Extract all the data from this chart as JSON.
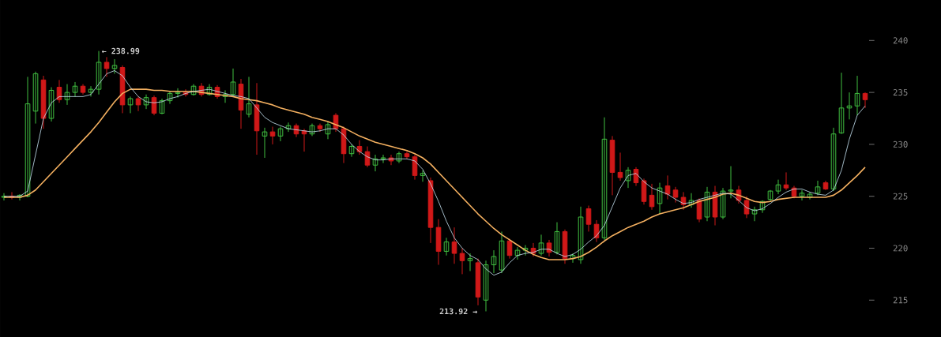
{
  "chart_data": {
    "type": "candlestick",
    "categories": [
      null,
      null,
      null,
      null,
      null,
      null,
      null,
      null,
      null,
      null,
      null,
      null,
      null,
      null,
      null,
      null,
      null,
      null,
      null,
      null,
      null,
      null,
      null,
      null,
      null,
      null,
      null,
      null,
      null,
      null,
      null,
      null,
      null,
      null,
      null,
      null,
      null,
      null,
      null,
      null,
      null,
      null,
      null,
      null,
      null,
      null,
      null,
      null,
      null,
      null,
      null,
      null,
      null,
      null,
      null,
      null,
      null,
      null,
      null,
      null,
      null,
      null,
      null,
      null,
      null,
      null,
      null,
      null,
      null,
      null,
      null,
      null,
      null,
      null,
      null,
      null,
      null,
      null,
      null,
      null,
      null,
      null,
      null,
      null,
      null,
      null,
      null,
      null,
      null,
      null,
      null,
      null,
      null,
      null,
      null,
      null,
      null,
      null,
      null,
      null,
      null,
      null,
      null,
      null,
      null,
      null,
      null,
      null,
      null,
      null
    ],
    "ohlc": [
      [
        224.9,
        225.3,
        224.6,
        225.0
      ],
      [
        225.0,
        225.4,
        224.7,
        224.9
      ],
      [
        224.9,
        225.2,
        224.6,
        225.1
      ],
      [
        225.0,
        236.5,
        224.9,
        233.9
      ],
      [
        233.2,
        237.0,
        232.0,
        236.8
      ],
      [
        236.2,
        236.6,
        231.5,
        232.5
      ],
      [
        232.5,
        235.5,
        232.2,
        235.2
      ],
      [
        235.5,
        236.2,
        234.0,
        234.3
      ],
      [
        234.3,
        235.8,
        233.8,
        235.0
      ],
      [
        235.0,
        236.0,
        234.6,
        235.6
      ],
      [
        235.6,
        235.8,
        234.8,
        235.0
      ],
      [
        235.0,
        235.6,
        234.6,
        235.3
      ],
      [
        235.3,
        238.99,
        234.8,
        237.9
      ],
      [
        237.9,
        238.4,
        236.5,
        237.3
      ],
      [
        237.3,
        238.2,
        236.8,
        237.6
      ],
      [
        237.4,
        237.6,
        233.0,
        233.8
      ],
      [
        233.8,
        234.6,
        233.0,
        234.4
      ],
      [
        234.4,
        234.6,
        233.2,
        233.8
      ],
      [
        233.8,
        234.8,
        233.4,
        234.5
      ],
      [
        234.5,
        234.7,
        232.8,
        233.0
      ],
      [
        233.0,
        234.4,
        232.9,
        234.2
      ],
      [
        234.2,
        235.1,
        233.9,
        234.9
      ],
      [
        234.9,
        235.4,
        234.5,
        235.0
      ],
      [
        235.0,
        235.3,
        234.6,
        234.8
      ],
      [
        234.8,
        235.8,
        234.7,
        235.6
      ],
      [
        235.6,
        235.9,
        234.6,
        234.8
      ],
      [
        234.8,
        235.8,
        234.7,
        235.5
      ],
      [
        235.5,
        235.7,
        234.4,
        234.6
      ],
      [
        234.6,
        235.2,
        234.0,
        234.8
      ],
      [
        234.8,
        237.3,
        234.6,
        236.0
      ],
      [
        235.8,
        236.3,
        231.5,
        233.3
      ],
      [
        232.9,
        236.5,
        232.6,
        233.9
      ],
      [
        233.8,
        235.9,
        229.0,
        231.3
      ],
      [
        230.8,
        231.6,
        228.7,
        231.2
      ],
      [
        231.2,
        231.7,
        230.0,
        230.8
      ],
      [
        230.8,
        231.7,
        230.3,
        231.5
      ],
      [
        231.5,
        232.1,
        231.2,
        231.8
      ],
      [
        231.8,
        232.0,
        230.7,
        231.0
      ],
      [
        231.3,
        231.5,
        229.3,
        231.0
      ],
      [
        231.0,
        232.0,
        230.8,
        231.8
      ],
      [
        231.8,
        232.0,
        231.2,
        231.5
      ],
      [
        231.0,
        232.2,
        230.5,
        231.9
      ],
      [
        232.8,
        233.0,
        231.2,
        231.5
      ],
      [
        231.5,
        231.7,
        228.2,
        229.1
      ],
      [
        229.1,
        230.0,
        228.8,
        229.8
      ],
      [
        229.8,
        230.4,
        229.0,
        229.3
      ],
      [
        229.3,
        229.8,
        227.8,
        228.0
      ],
      [
        228.0,
        229.0,
        227.4,
        228.6
      ],
      [
        228.6,
        229.0,
        228.2,
        228.7
      ],
      [
        228.7,
        229.0,
        228.0,
        228.4
      ],
      [
        228.4,
        229.3,
        228.2,
        229.1
      ],
      [
        229.1,
        229.3,
        228.6,
        228.8
      ],
      [
        228.8,
        229.0,
        226.6,
        227.0
      ],
      [
        227.0,
        227.5,
        226.4,
        227.2
      ],
      [
        226.5,
        226.8,
        220.5,
        222.0
      ],
      [
        222.0,
        222.8,
        218.4,
        219.7
      ],
      [
        219.7,
        221.0,
        219.3,
        220.6
      ],
      [
        220.6,
        222.0,
        218.5,
        219.5
      ],
      [
        219.5,
        220.0,
        217.5,
        218.8
      ],
      [
        218.8,
        219.5,
        217.8,
        219.0
      ],
      [
        218.6,
        219.0,
        214.5,
        215.3
      ],
      [
        215.0,
        218.8,
        213.92,
        218.4
      ],
      [
        218.4,
        219.8,
        217.6,
        219.2
      ],
      [
        217.9,
        221.6,
        217.6,
        220.7
      ],
      [
        220.7,
        220.9,
        219.0,
        219.3
      ],
      [
        219.3,
        220.1,
        218.9,
        219.8
      ],
      [
        219.8,
        220.3,
        219.3,
        220.0
      ],
      [
        220.0,
        220.5,
        219.2,
        219.5
      ],
      [
        219.5,
        221.3,
        219.3,
        220.5
      ],
      [
        220.5,
        220.8,
        219.2,
        219.6
      ],
      [
        219.6,
        222.5,
        219.4,
        221.6
      ],
      [
        221.6,
        221.8,
        218.5,
        219.0
      ],
      [
        219.0,
        219.5,
        218.6,
        219.3
      ],
      [
        218.9,
        224.0,
        218.5,
        223.0
      ],
      [
        223.8,
        224.1,
        221.6,
        222.3
      ],
      [
        222.3,
        222.7,
        220.6,
        221.0
      ],
      [
        221.0,
        232.6,
        220.8,
        230.5
      ],
      [
        230.4,
        230.8,
        225.1,
        227.3
      ],
      [
        227.3,
        229.2,
        226.5,
        226.8
      ],
      [
        226.5,
        227.8,
        225.8,
        227.5
      ],
      [
        227.6,
        227.8,
        226.0,
        226.3
      ],
      [
        226.5,
        226.7,
        224.2,
        224.5
      ],
      [
        225.1,
        226.2,
        223.7,
        224.0
      ],
      [
        224.3,
        226.3,
        223.3,
        225.8
      ],
      [
        226.0,
        227.0,
        224.7,
        225.2
      ],
      [
        225.6,
        225.9,
        224.4,
        224.9
      ],
      [
        224.9,
        225.4,
        223.7,
        224.2
      ],
      [
        224.2,
        225.3,
        223.9,
        224.6
      ],
      [
        224.6,
        224.8,
        222.5,
        222.8
      ],
      [
        223.0,
        225.9,
        222.6,
        225.4
      ],
      [
        225.4,
        226.0,
        222.2,
        223.0
      ],
      [
        223.0,
        225.8,
        222.8,
        225.5
      ],
      [
        225.5,
        227.9,
        224.8,
        225.6
      ],
      [
        225.6,
        226.0,
        224.3,
        224.6
      ],
      [
        224.6,
        225.0,
        222.9,
        223.3
      ],
      [
        223.3,
        224.0,
        222.6,
        223.7
      ],
      [
        223.7,
        224.6,
        223.4,
        224.5
      ],
      [
        224.7,
        225.6,
        224.5,
        225.5
      ],
      [
        225.5,
        226.6,
        225.2,
        226.1
      ],
      [
        226.1,
        227.3,
        225.6,
        225.8
      ],
      [
        225.8,
        226.0,
        224.8,
        225.0
      ],
      [
        225.0,
        225.6,
        224.6,
        225.3
      ],
      [
        224.9,
        225.4,
        224.7,
        225.2
      ],
      [
        225.3,
        226.5,
        225.1,
        225.9
      ],
      [
        226.3,
        226.5,
        225.6,
        225.7
      ],
      [
        225.7,
        231.6,
        225.5,
        231.0
      ],
      [
        231.1,
        236.9,
        231.0,
        233.5
      ],
      [
        233.5,
        235.0,
        232.4,
        233.7
      ],
      [
        233.7,
        236.6,
        232.8,
        234.9
      ],
      [
        234.9,
        235.0,
        233.5,
        234.3
      ]
    ],
    "colors": [
      "#40c040",
      "#d01818",
      "#40c040",
      "#40c040",
      "#40c040",
      "#d01818",
      "#40c040",
      "#d01818",
      "#40c040",
      "#40c040",
      "#d01818",
      "#40c040",
      "#40c040",
      "#d01818",
      "#40c040",
      "#d01818",
      "#40c040",
      "#d01818",
      "#40c040",
      "#d01818",
      "#40c040",
      "#40c040",
      "#40c040",
      "#d01818",
      "#40c040",
      "#d01818",
      "#40c040",
      "#d01818",
      "#40c040",
      "#40c040",
      "#d01818",
      "#40c040",
      "#d01818",
      "#40c040",
      "#d01818",
      "#40c040",
      "#40c040",
      "#d01818",
      "#d01818",
      "#40c040",
      "#d01818",
      "#40c040",
      "#d01818",
      "#d01818",
      "#40c040",
      "#d01818",
      "#d01818",
      "#40c040",
      "#40c040",
      "#d01818",
      "#40c040",
      "#d01818",
      "#d01818",
      "#40c040",
      "#d01818",
      "#d01818",
      "#40c040",
      "#d01818",
      "#d01818",
      "#40c040",
      "#d01818",
      "#40c040",
      "#40c040",
      "#40c040",
      "#d01818",
      "#40c040",
      "#40c040",
      "#d01818",
      "#40c040",
      "#d01818",
      "#40c040",
      "#d01818",
      "#40c040",
      "#40c040",
      "#d01818",
      "#d01818",
      "#40c040",
      "#d01818",
      "#d01818",
      "#40c040",
      "#d01818",
      "#d01818",
      "#d01818",
      "#40c040",
      "#d01818",
      "#d01818",
      "#d01818",
      "#40c040",
      "#d01818",
      "#40c040",
      "#d01818",
      "#40c040",
      "#40c040",
      "#d01818",
      "#d01818",
      "#40c040",
      "#40c040",
      "#40c040",
      "#40c040",
      "#d01818",
      "#d01818",
      "#40c040",
      "#40c040",
      "#40c040",
      "#d01818",
      "#40c040",
      "#40c040",
      "#40c040",
      "#40c040",
      "#d01818"
    ],
    "series": [
      {
        "type": "line",
        "color": "#c8e4f4",
        "values": [
          225.0,
          225.0,
          225.0,
          225.5,
          229.0,
          232.5,
          234.0,
          234.6,
          234.6,
          234.6,
          234.6,
          234.8,
          235.8,
          236.8,
          237.1,
          236.6,
          235.5,
          234.6,
          234.1,
          234.0,
          234.1,
          234.4,
          234.6,
          234.9,
          235.1,
          235.2,
          235.3,
          235.1,
          234.9,
          234.7,
          234.6,
          234.4,
          233.5,
          232.6,
          232.1,
          231.8,
          231.5,
          231.4,
          231.3,
          231.2,
          231.3,
          231.5,
          231.5,
          230.9,
          230.0,
          229.3,
          228.8,
          228.5,
          228.5,
          228.6,
          228.6,
          228.6,
          228.4,
          227.6,
          226.2,
          224.5,
          222.6,
          221.0,
          220.0,
          219.3,
          218.9,
          218.0,
          217.4,
          217.7,
          218.6,
          219.3,
          219.5,
          219.6,
          219.9,
          219.9,
          219.5,
          219.2,
          219.4,
          219.9,
          220.6,
          221.2,
          222.2,
          224.0,
          225.8,
          227.0,
          227.2,
          226.4,
          225.8,
          225.5,
          225.2,
          224.7,
          224.3,
          224.4,
          224.7,
          224.9,
          225.1,
          225.3,
          225.2,
          224.6,
          223.9,
          223.6,
          223.8,
          224.3,
          224.9,
          225.4,
          225.7,
          225.7,
          225.4,
          225.2,
          225.1,
          225.6,
          227.5,
          230.5,
          232.8,
          233.7
        ]
      },
      {
        "type": "line",
        "color": "#f4b060",
        "values": [
          224.9,
          224.9,
          224.9,
          225.1,
          225.6,
          226.4,
          227.2,
          228.0,
          228.8,
          229.6,
          230.4,
          231.2,
          232.1,
          233.1,
          234.1,
          234.9,
          235.3,
          235.3,
          235.3,
          235.2,
          235.2,
          235.1,
          235.1,
          235.1,
          235.1,
          235.0,
          234.9,
          234.8,
          234.7,
          234.6,
          234.4,
          234.3,
          234.2,
          234.0,
          233.8,
          233.5,
          233.3,
          233.1,
          232.9,
          232.6,
          232.4,
          232.2,
          231.9,
          231.6,
          231.2,
          230.8,
          230.5,
          230.2,
          230.0,
          229.8,
          229.6,
          229.4,
          229.1,
          228.7,
          228.1,
          227.3,
          226.5,
          225.7,
          224.9,
          224.1,
          223.3,
          222.6,
          221.9,
          221.3,
          220.8,
          220.3,
          219.8,
          219.4,
          219.1,
          218.9,
          218.9,
          218.9,
          219.0,
          219.2,
          219.6,
          220.1,
          220.7,
          221.2,
          221.6,
          222.0,
          222.3,
          222.6,
          223.0,
          223.3,
          223.5,
          223.7,
          223.9,
          224.2,
          224.5,
          224.7,
          224.9,
          225.2,
          225.3,
          225.1,
          224.8,
          224.5,
          224.4,
          224.5,
          224.7,
          224.8,
          224.9,
          224.9,
          224.9,
          224.9,
          224.9,
          225.1,
          225.6,
          226.3,
          227.0,
          227.8
        ]
      }
    ],
    "ylim": [
      211.45,
      243.9
    ],
    "yticks": [
      215,
      220,
      225,
      230,
      235,
      240
    ],
    "annotations": [
      "← 238.99",
      "213.92 →"
    ]
  }
}
